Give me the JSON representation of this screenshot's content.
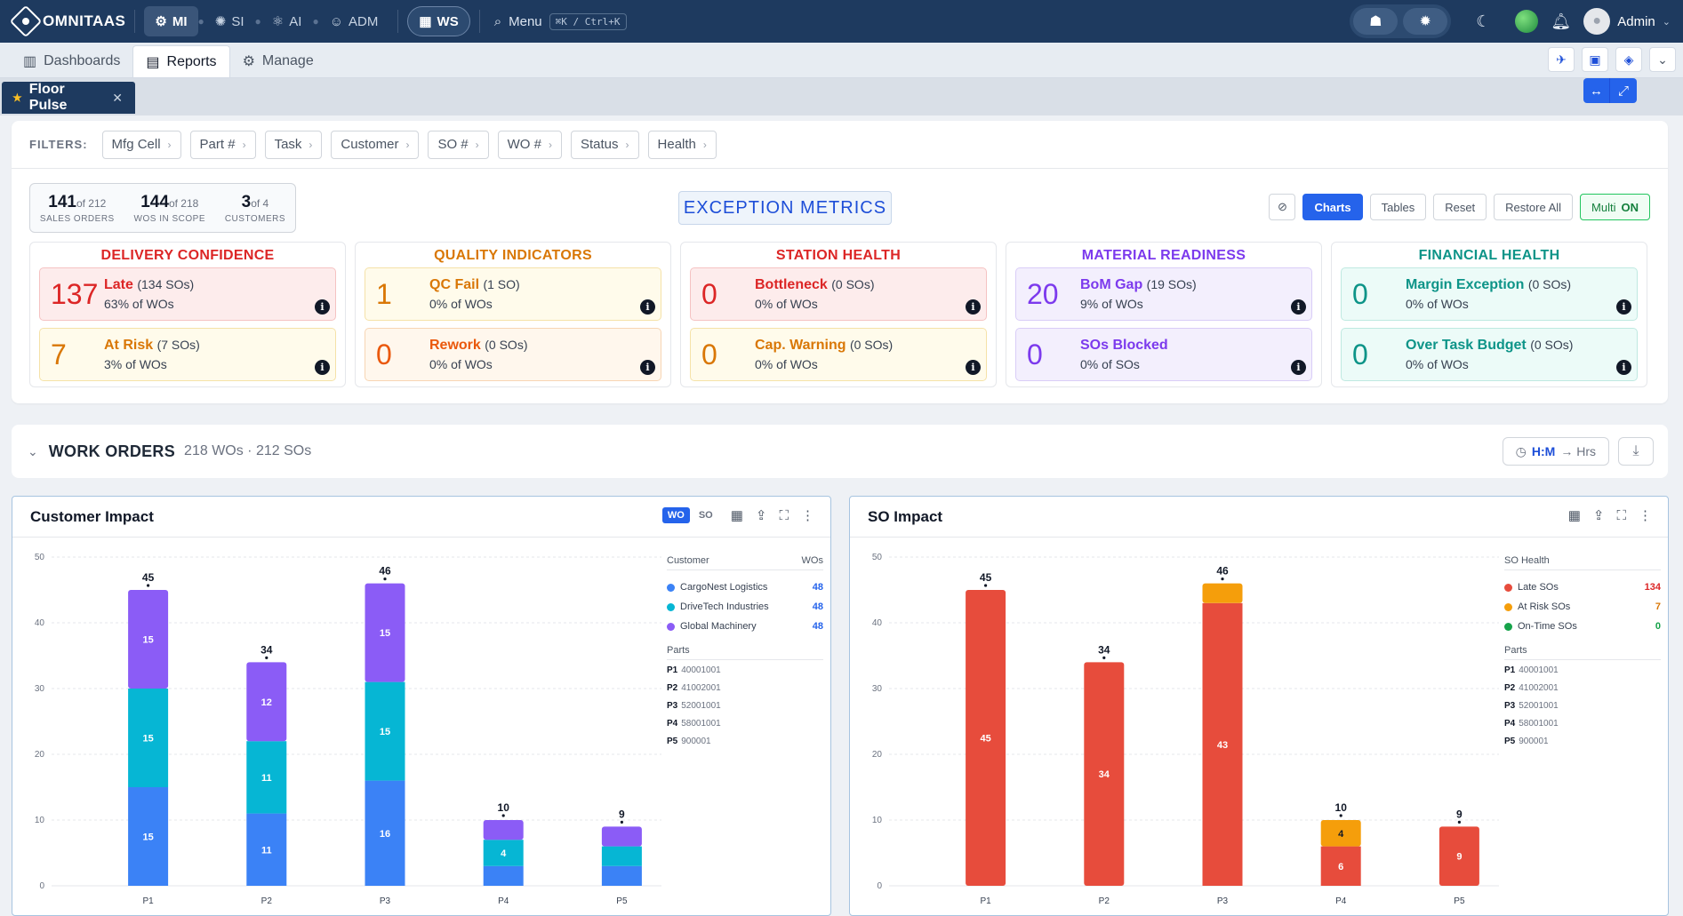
{
  "topbar": {
    "logo": "OMNITAAS",
    "nav": [
      {
        "label": "MI",
        "active": true
      },
      {
        "label": "SI",
        "active": false
      },
      {
        "label": "AI",
        "active": false
      },
      {
        "label": "ADM",
        "active": false
      }
    ],
    "ws_label": "WS",
    "menu_label": "Menu",
    "shortcut": "⌘K / Ctrl+K",
    "user": "Admin"
  },
  "subnav": {
    "tabs": [
      {
        "label": "Dashboards",
        "active": false
      },
      {
        "label": "Reports",
        "active": true
      },
      {
        "label": "Manage",
        "active": false
      }
    ]
  },
  "page_tab": {
    "label": "Floor Pulse"
  },
  "filters": {
    "label": "FILTERS:",
    "chips": [
      "Mfg Cell",
      "Part #",
      "Task",
      "Customer",
      "SO #",
      "WO #",
      "Status",
      "Health"
    ]
  },
  "summary": [
    {
      "num": "141",
      "of": "of 212",
      "label": "SALES ORDERS"
    },
    {
      "num": "144",
      "of": "of 218",
      "label": "WOS IN SCOPE"
    },
    {
      "num": "3",
      "of": "of 4",
      "label": "CUSTOMERS"
    }
  ],
  "exception": {
    "title": "EXCEPTION METRICS",
    "buttons": {
      "charts": "Charts",
      "tables": "Tables",
      "reset": "Reset",
      "restore": "Restore All",
      "multi": "Multi",
      "multi_state": "ON"
    }
  },
  "categories": [
    {
      "title": "DELIVERY CONFIDENCE",
      "color": "#dc2626",
      "cards": [
        {
          "num": "137",
          "name": "Late",
          "count": "(134 SOs)",
          "sub": "63% of WOs",
          "bg": "#fdecec",
          "border": "#f5c2c2",
          "numColor": "#dc2626"
        },
        {
          "num": "7",
          "name": "At Risk",
          "count": "(7 SOs)",
          "sub": "3% of WOs",
          "bg": "#fffbeb",
          "border": "#f5e2a8",
          "numColor": "#d97706"
        }
      ]
    },
    {
      "title": "QUALITY INDICATORS",
      "color": "#d97706",
      "cards": [
        {
          "num": "1",
          "name": "QC Fail",
          "count": "(1 SO)",
          "sub": "0% of WOs",
          "bg": "#fffbeb",
          "border": "#f5e2a8",
          "numColor": "#d97706"
        },
        {
          "num": "0",
          "name": "Rework",
          "count": "(0 SOs)",
          "sub": "0% of WOs",
          "bg": "#fff7ed",
          "border": "#f7d5b4",
          "numColor": "#ea580c"
        }
      ]
    },
    {
      "title": "STATION HEALTH",
      "color": "#dc2626",
      "cards": [
        {
          "num": "0",
          "name": "Bottleneck",
          "count": "(0 SOs)",
          "sub": "0% of WOs",
          "bg": "#fdecec",
          "border": "#f5c2c2",
          "numColor": "#dc2626"
        },
        {
          "num": "0",
          "name": "Cap. Warning",
          "count": "(0 SOs)",
          "sub": "0% of WOs",
          "bg": "#fffbeb",
          "border": "#f5e2a8",
          "numColor": "#d97706"
        }
      ]
    },
    {
      "title": "MATERIAL READINESS",
      "color": "#7c3aed",
      "cards": [
        {
          "num": "20",
          "name": "BoM Gap",
          "count": "(19 SOs)",
          "sub": "9% of WOs",
          "bg": "#f3effd",
          "border": "#d9cdf7",
          "numColor": "#7c3aed"
        },
        {
          "num": "0",
          "name": "SOs Blocked",
          "count": "",
          "sub": "0% of SOs",
          "bg": "#f3effd",
          "border": "#d9cdf7",
          "numColor": "#7c3aed"
        }
      ]
    },
    {
      "title": "FINANCIAL HEALTH",
      "color": "#0d9488",
      "cards": [
        {
          "num": "0",
          "name": "Margin Exception",
          "count": "(0 SOs)",
          "sub": "0% of WOs",
          "bg": "#ecfbf8",
          "border": "#bfe9e1",
          "numColor": "#0d9488"
        },
        {
          "num": "0",
          "name": "Over Task Budget",
          "count": "(0 SOs)",
          "sub": "0% of WOs",
          "bg": "#ecfbf8",
          "border": "#bfe9e1",
          "numColor": "#0d9488"
        }
      ]
    }
  ],
  "work_orders": {
    "title": "WORK ORDERS",
    "sub": "218 WOs · 212 SOs",
    "hm_key": "H:M",
    "hm_arrow": "→ Hrs"
  },
  "chart_data": [
    {
      "type": "bar",
      "title": "Customer Impact",
      "toggle": [
        "WO",
        "SO"
      ],
      "categories": [
        "P1",
        "P2",
        "P3",
        "P4",
        "P5"
      ],
      "ylim": [
        0,
        50
      ],
      "yticks": [
        0,
        10,
        20,
        30,
        40,
        50
      ],
      "series": [
        {
          "name": "CargoNest Logistics",
          "color": "#3b82f6",
          "values": [
            15,
            11,
            16,
            3,
            3
          ]
        },
        {
          "name": "DriveTech Industries",
          "color": "#06b6d4",
          "values": [
            15,
            11,
            15,
            4,
            3
          ]
        },
        {
          "name": "Global Machinery",
          "color": "#8b5cf6",
          "values": [
            15,
            12,
            15,
            3,
            3
          ]
        }
      ],
      "totals": [
        45,
        34,
        46,
        10,
        9
      ],
      "legend_header": [
        "Customer",
        "WOs"
      ],
      "legend_values": [
        "48",
        "48",
        "48"
      ],
      "legend_value_color": "#2563eb",
      "parts_label": "Parts",
      "parts": [
        [
          "P1",
          "40001001"
        ],
        [
          "P2",
          "41002001"
        ],
        [
          "P3",
          "52001001"
        ],
        [
          "P4",
          "58001001"
        ],
        [
          "P5",
          "900001"
        ]
      ]
    },
    {
      "type": "bar",
      "title": "SO Impact",
      "categories": [
        "P1",
        "P2",
        "P3",
        "P4",
        "P5"
      ],
      "ylim": [
        0,
        50
      ],
      "yticks": [
        0,
        10,
        20,
        30,
        40,
        50
      ],
      "series": [
        {
          "name": "Late SOs",
          "color": "#e74c3c",
          "values": [
            45,
            34,
            43,
            6,
            9
          ]
        },
        {
          "name": "At Risk SOs",
          "color": "#f59e0b",
          "values": [
            0,
            0,
            3,
            4,
            0
          ]
        },
        {
          "name": "On-Time SOs",
          "color": "#16a34a",
          "values": [
            0,
            0,
            0,
            0,
            0
          ]
        }
      ],
      "totals": [
        45,
        34,
        46,
        10,
        9
      ],
      "legend_header": [
        "SO Health",
        ""
      ],
      "legend_values": [
        "134",
        "7",
        "0"
      ],
      "legend_value_colors": [
        "#dc2626",
        "#d97706",
        "#16a34a"
      ],
      "parts_label": "Parts",
      "parts": [
        [
          "P1",
          "40001001"
        ],
        [
          "P2",
          "41002001"
        ],
        [
          "P3",
          "52001001"
        ],
        [
          "P4",
          "58001001"
        ],
        [
          "P5",
          "900001"
        ]
      ]
    }
  ]
}
